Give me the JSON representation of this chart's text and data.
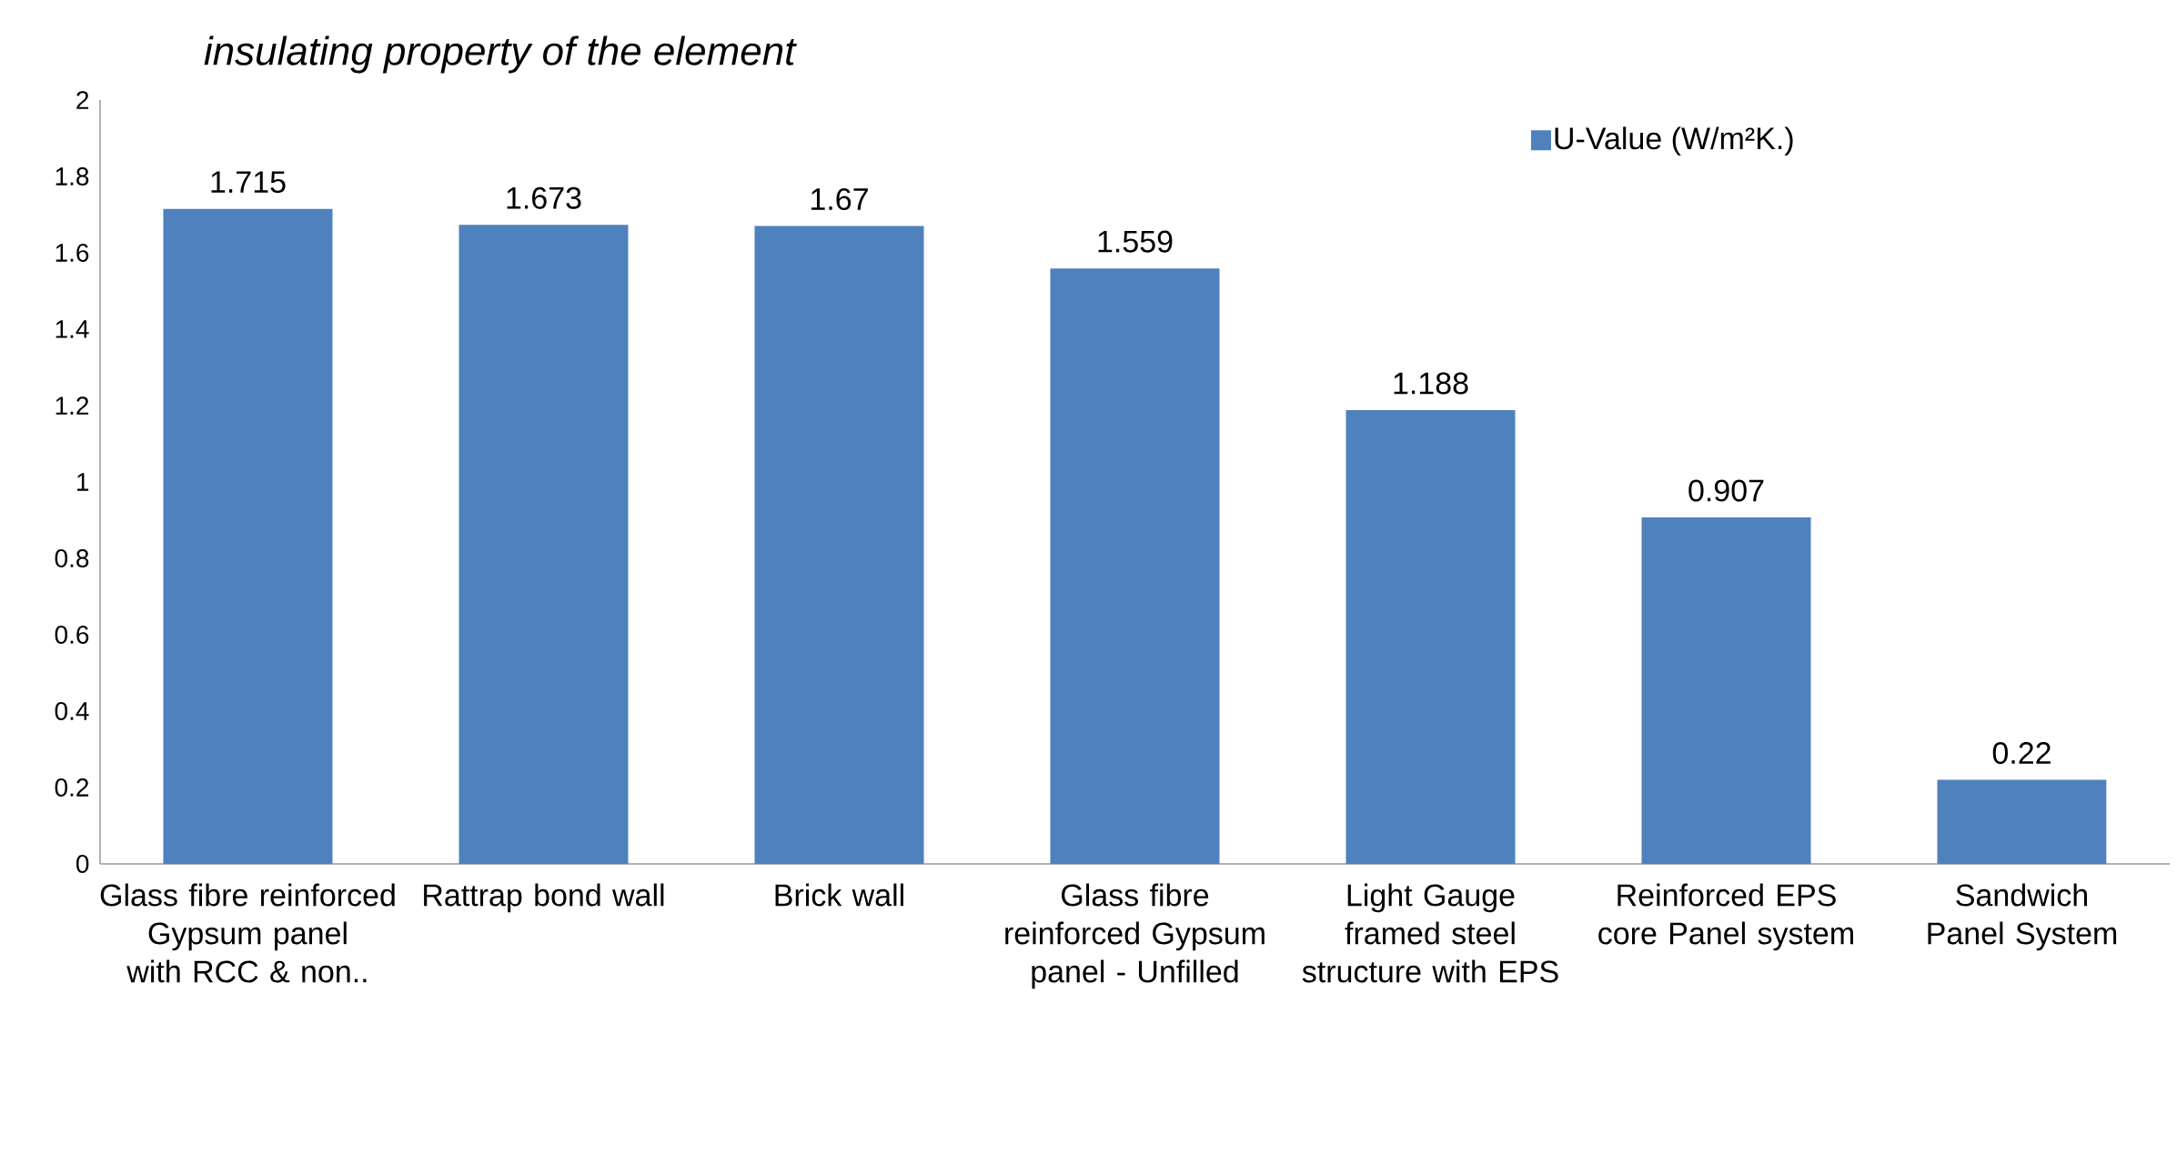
{
  "chart_data": {
    "type": "bar",
    "title": "*insulating property of the element*",
    "categories": [
      "Glass fibre reinforced Gypsum panel with RCC & non..",
      "Rattrap bond wall",
      "Brick wall",
      "Glass fibre reinforced Gypsum panel - Unfilled",
      "Light Gauge framed steel structure with EPS",
      "Reinforced EPS core Panel system",
      "Sandwich Panel System"
    ],
    "series": [
      {
        "name": "U-Value (W/m²K.)",
        "color": "#4f81bd",
        "values": [
          1.715,
          1.673,
          1.67,
          1.559,
          1.188,
          0.907,
          0.22
        ]
      }
    ],
    "ylim": [
      0,
      2
    ],
    "yticks": [
      0,
      0.2,
      0.4,
      0.6,
      0.8,
      1,
      1.2,
      1.4,
      1.6,
      1.8,
      2
    ],
    "data_labels": true,
    "legend": "top right"
  }
}
